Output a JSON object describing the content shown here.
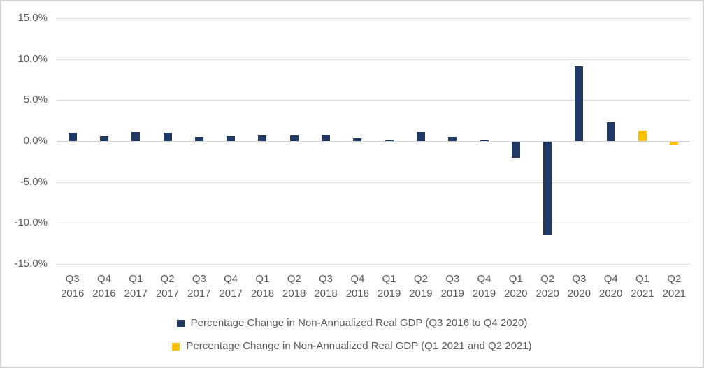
{
  "chart_data": {
    "type": "bar",
    "title": "",
    "xlabel": "",
    "ylabel": "",
    "grid": "horizontal",
    "legend_position": "bottom",
    "ylim": [
      -15,
      15
    ],
    "yticks": [
      {
        "value": 15,
        "label": "15.0%"
      },
      {
        "value": 10,
        "label": "10.0%"
      },
      {
        "value": 5,
        "label": "5.0%"
      },
      {
        "value": 0,
        "label": "0.0%"
      },
      {
        "value": -5,
        "label": "-5.0%"
      },
      {
        "value": -10,
        "label": "-10.0%"
      },
      {
        "value": -15,
        "label": "-15.0%"
      }
    ],
    "categories": [
      {
        "quarter": "Q3",
        "year": "2016"
      },
      {
        "quarter": "Q4",
        "year": "2016"
      },
      {
        "quarter": "Q1",
        "year": "2017"
      },
      {
        "quarter": "Q2",
        "year": "2017"
      },
      {
        "quarter": "Q3",
        "year": "2017"
      },
      {
        "quarter": "Q4",
        "year": "2017"
      },
      {
        "quarter": "Q1",
        "year": "2018"
      },
      {
        "quarter": "Q2",
        "year": "2018"
      },
      {
        "quarter": "Q3",
        "year": "2018"
      },
      {
        "quarter": "Q4",
        "year": "2018"
      },
      {
        "quarter": "Q1",
        "year": "2019"
      },
      {
        "quarter": "Q2",
        "year": "2019"
      },
      {
        "quarter": "Q3",
        "year": "2019"
      },
      {
        "quarter": "Q4",
        "year": "2019"
      },
      {
        "quarter": "Q1",
        "year": "2020"
      },
      {
        "quarter": "Q2",
        "year": "2020"
      },
      {
        "quarter": "Q3",
        "year": "2020"
      },
      {
        "quarter": "Q4",
        "year": "2020"
      },
      {
        "quarter": "Q1",
        "year": "2021"
      },
      {
        "quarter": "Q2",
        "year": "2021"
      }
    ],
    "series": [
      {
        "name": "Percentage Change in Non-Annualized Real GDP (Q3 2016 to Q4 2020)",
        "color": "#1F3864",
        "values": [
          1.0,
          0.6,
          1.1,
          1.0,
          0.5,
          0.6,
          0.7,
          0.7,
          0.8,
          0.3,
          0.2,
          1.1,
          0.5,
          0.2,
          -2.0,
          -11.3,
          9.1,
          2.3,
          null,
          null
        ]
      },
      {
        "name": "Percentage Change in Non-Annualized Real GDP (Q1 2021 and Q2 2021)",
        "color": "#FFC000",
        "values": [
          null,
          null,
          null,
          null,
          null,
          null,
          null,
          null,
          null,
          null,
          null,
          null,
          null,
          null,
          null,
          null,
          null,
          null,
          1.3,
          -0.4
        ]
      }
    ],
    "colors": {
      "background": "#FFFFFF",
      "frame_border": "#D9D9D9",
      "gridline": "#DBDBDB",
      "axis_text": "#595959"
    }
  }
}
